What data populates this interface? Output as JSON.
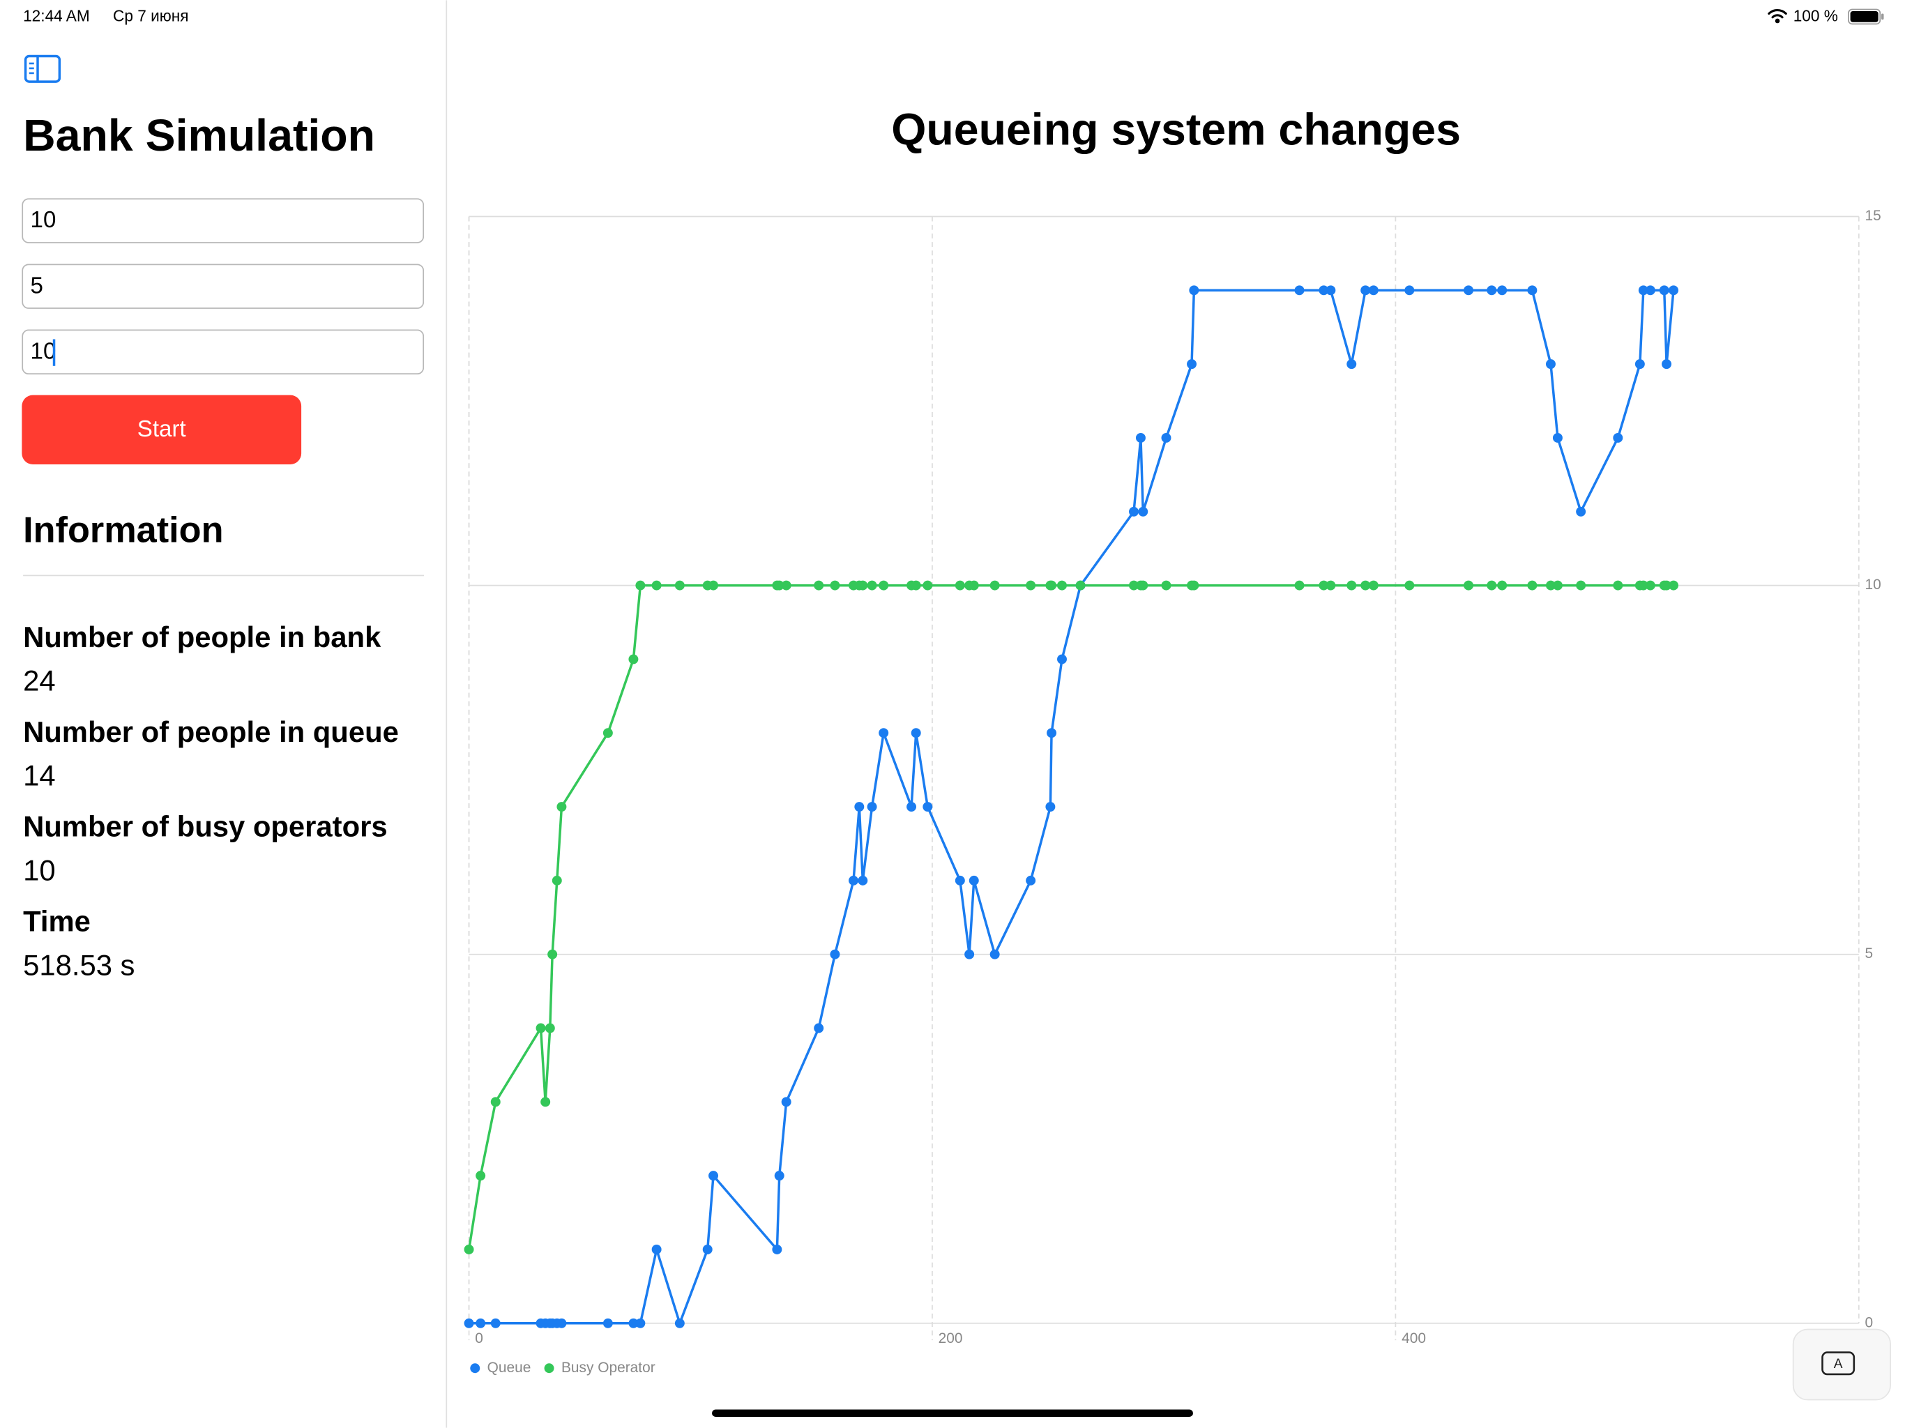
{
  "status_bar": {
    "time": "12:44 AM",
    "date": "Ср 7 июня",
    "battery": "100 %"
  },
  "sidebar": {
    "title": "Bank Simulation",
    "inputs": [
      "10",
      "5",
      "10"
    ],
    "button": "Start",
    "section": "Information",
    "items": [
      {
        "label": "Number of people in bank",
        "value": "24"
      },
      {
        "label": "Number of people in queue",
        "value": "14"
      },
      {
        "label": "Number of busy operators",
        "value": "10"
      },
      {
        "label": "Time",
        "value": "518.53 s"
      }
    ]
  },
  "chart_data": {
    "type": "line",
    "title": "Queueing system changes",
    "x": [
      0,
      5,
      11.5,
      31,
      33,
      35,
      36,
      38,
      40,
      60,
      71,
      74,
      81,
      91,
      103,
      105.5,
      133,
      134,
      137,
      151,
      158,
      166,
      168.5,
      170,
      174,
      179,
      191,
      193,
      198,
      212,
      216,
      218,
      227,
      242.5,
      251,
      251.5,
      256,
      264,
      287,
      290,
      291,
      301,
      312,
      313,
      358.5,
      369,
      372,
      381,
      387,
      390.5,
      406,
      431.5,
      441.5,
      446,
      459,
      467,
      470,
      480,
      496,
      505.5,
      507,
      510,
      516,
      517,
      520
    ],
    "series": [
      {
        "name": "Queue",
        "color": "#1a7cf0",
        "values": [
          0,
          0,
          0,
          0,
          0,
          0,
          0,
          0,
          0,
          0,
          0,
          0,
          1,
          0,
          1,
          2,
          1,
          2,
          3,
          4,
          5,
          6,
          7,
          6,
          7,
          8,
          7,
          8,
          7,
          6,
          5,
          6,
          5,
          6,
          7,
          8,
          9,
          10,
          11,
          12,
          11,
          12,
          13,
          14,
          14,
          14,
          14,
          13,
          14,
          14,
          14,
          14,
          14,
          14,
          14,
          13,
          12,
          11,
          12,
          13,
          14,
          14,
          14,
          13,
          14
        ]
      },
      {
        "name": "Busy Operator",
        "color": "#34c759",
        "values": [
          1,
          2,
          3,
          4,
          3,
          4,
          5,
          6,
          7,
          8,
          9,
          10,
          10,
          10,
          10,
          10,
          10,
          10,
          10,
          10,
          10,
          10,
          10,
          10,
          10,
          10,
          10,
          10,
          10,
          10,
          10,
          10,
          10,
          10,
          10,
          10,
          10,
          10,
          10,
          10,
          10,
          10,
          10,
          10,
          10,
          10,
          10,
          10,
          10,
          10,
          10,
          10,
          10,
          10,
          10,
          10,
          10,
          10,
          10,
          10,
          10,
          10,
          10,
          10,
          10
        ]
      }
    ],
    "xlim": [
      0,
      600
    ],
    "xticks": [
      0,
      200,
      400
    ],
    "ylim": [
      0,
      15
    ],
    "yticks": [
      0,
      5,
      10,
      15
    ],
    "grid": true
  }
}
